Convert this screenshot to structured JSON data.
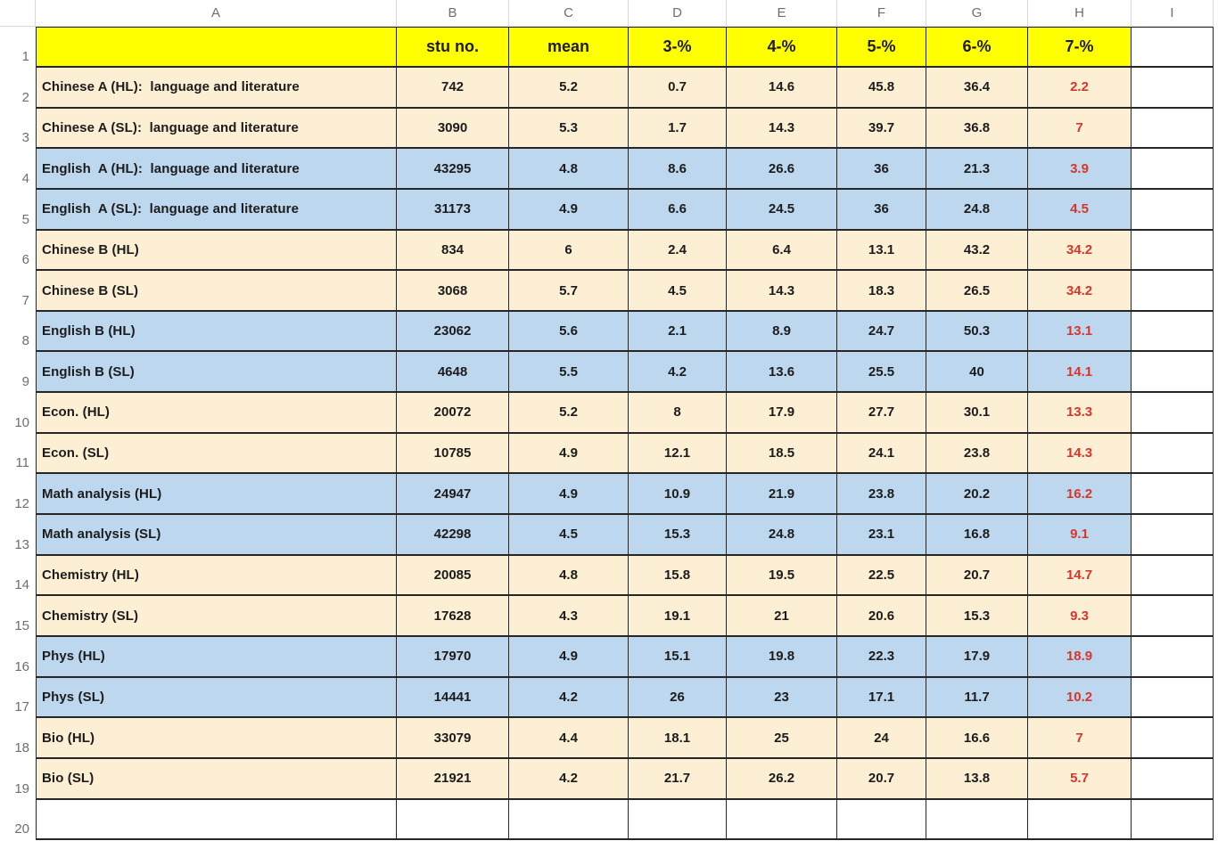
{
  "sheet": {
    "corner_label": "",
    "column_letters": [
      "A",
      "B",
      "C",
      "D",
      "E",
      "F",
      "G",
      "H",
      "I"
    ],
    "header_row": {
      "row_number": "1",
      "a_label": "",
      "labels": [
        "stu no.",
        "mean",
        "3-%",
        "4-%",
        "5-%",
        "6-%",
        "7-%"
      ]
    },
    "rows": [
      {
        "row_number": "2",
        "label": "Chinese A (HL):  language and literature",
        "band": "cream",
        "values": [
          "742",
          "5.2",
          "0.7",
          "14.6",
          "45.8",
          "36.4",
          "2.2"
        ]
      },
      {
        "row_number": "3",
        "label": "Chinese A (SL):  language and literature",
        "band": "cream",
        "values": [
          "3090",
          "5.3",
          "1.7",
          "14.3",
          "39.7",
          "36.8",
          "7"
        ]
      },
      {
        "row_number": "4",
        "label": "English  A (HL):  language and literature",
        "band": "blue",
        "values": [
          "43295",
          "4.8",
          "8.6",
          "26.6",
          "36",
          "21.3",
          "3.9"
        ]
      },
      {
        "row_number": "5",
        "label": "English  A (SL):  language and literature",
        "band": "blue",
        "values": [
          "31173",
          "4.9",
          "6.6",
          "24.5",
          "36",
          "24.8",
          "4.5"
        ]
      },
      {
        "row_number": "6",
        "label": "Chinese B (HL)",
        "band": "cream",
        "values": [
          "834",
          "6",
          "2.4",
          "6.4",
          "13.1",
          "43.2",
          "34.2"
        ]
      },
      {
        "row_number": "7",
        "label": "Chinese B (SL)",
        "band": "cream",
        "values": [
          "3068",
          "5.7",
          "4.5",
          "14.3",
          "18.3",
          "26.5",
          "34.2"
        ]
      },
      {
        "row_number": "8",
        "label": "English B (HL)",
        "band": "blue",
        "values": [
          "23062",
          "5.6",
          "2.1",
          "8.9",
          "24.7",
          "50.3",
          "13.1"
        ]
      },
      {
        "row_number": "9",
        "label": "English B (SL)",
        "band": "blue",
        "values": [
          "4648",
          "5.5",
          "4.2",
          "13.6",
          "25.5",
          "40",
          "14.1"
        ]
      },
      {
        "row_number": "10",
        "label": "Econ. (HL)",
        "band": "cream",
        "values": [
          "20072",
          "5.2",
          "8",
          "17.9",
          "27.7",
          "30.1",
          "13.3"
        ]
      },
      {
        "row_number": "11",
        "label": "Econ. (SL)",
        "band": "cream",
        "values": [
          "10785",
          "4.9",
          "12.1",
          "18.5",
          "24.1",
          "23.8",
          "14.3"
        ]
      },
      {
        "row_number": "12",
        "label": "Math analysis (HL)",
        "band": "blue",
        "values": [
          "24947",
          "4.9",
          "10.9",
          "21.9",
          "23.8",
          "20.2",
          "16.2"
        ]
      },
      {
        "row_number": "13",
        "label": "Math analysis (SL)",
        "band": "blue",
        "values": [
          "42298",
          "4.5",
          "15.3",
          "24.8",
          "23.1",
          "16.8",
          "9.1"
        ]
      },
      {
        "row_number": "14",
        "label": "Chemistry (HL)",
        "band": "cream",
        "values": [
          "20085",
          "4.8",
          "15.8",
          "19.5",
          "22.5",
          "20.7",
          "14.7"
        ]
      },
      {
        "row_number": "15",
        "label": "Chemistry (SL)",
        "band": "cream",
        "values": [
          "17628",
          "4.3",
          "19.1",
          "21",
          "20.6",
          "15.3",
          "9.3"
        ]
      },
      {
        "row_number": "16",
        "label": "Phys (HL)",
        "band": "blue",
        "values": [
          "17970",
          "4.9",
          "15.1",
          "19.8",
          "22.3",
          "17.9",
          "18.9"
        ]
      },
      {
        "row_number": "17",
        "label": "Phys (SL)",
        "band": "blue",
        "values": [
          "14441",
          "4.2",
          "26",
          "23",
          "17.1",
          "11.7",
          "10.2"
        ]
      },
      {
        "row_number": "18",
        "label": "Bio (HL)",
        "band": "cream",
        "values": [
          "33079",
          "4.4",
          "18.1",
          "25",
          "24",
          "16.6",
          "7"
        ]
      },
      {
        "row_number": "19",
        "label": "Bio (SL)",
        "band": "cream",
        "values": [
          "21921",
          "4.2",
          "21.7",
          "26.2",
          "20.7",
          "13.8",
          "5.7"
        ]
      }
    ],
    "empty_row_number": "20",
    "colors": {
      "header_fill": "#FFFF00",
      "band_cream": "#FCEFD4",
      "band_blue": "#BDD7EE",
      "red_text": "#D9352B",
      "black_text": "#1C1C1C",
      "grid_border": "#262626",
      "frame_text_gray": "#6E6E6E",
      "frame_line_gray": "#D9D9D9"
    }
  }
}
